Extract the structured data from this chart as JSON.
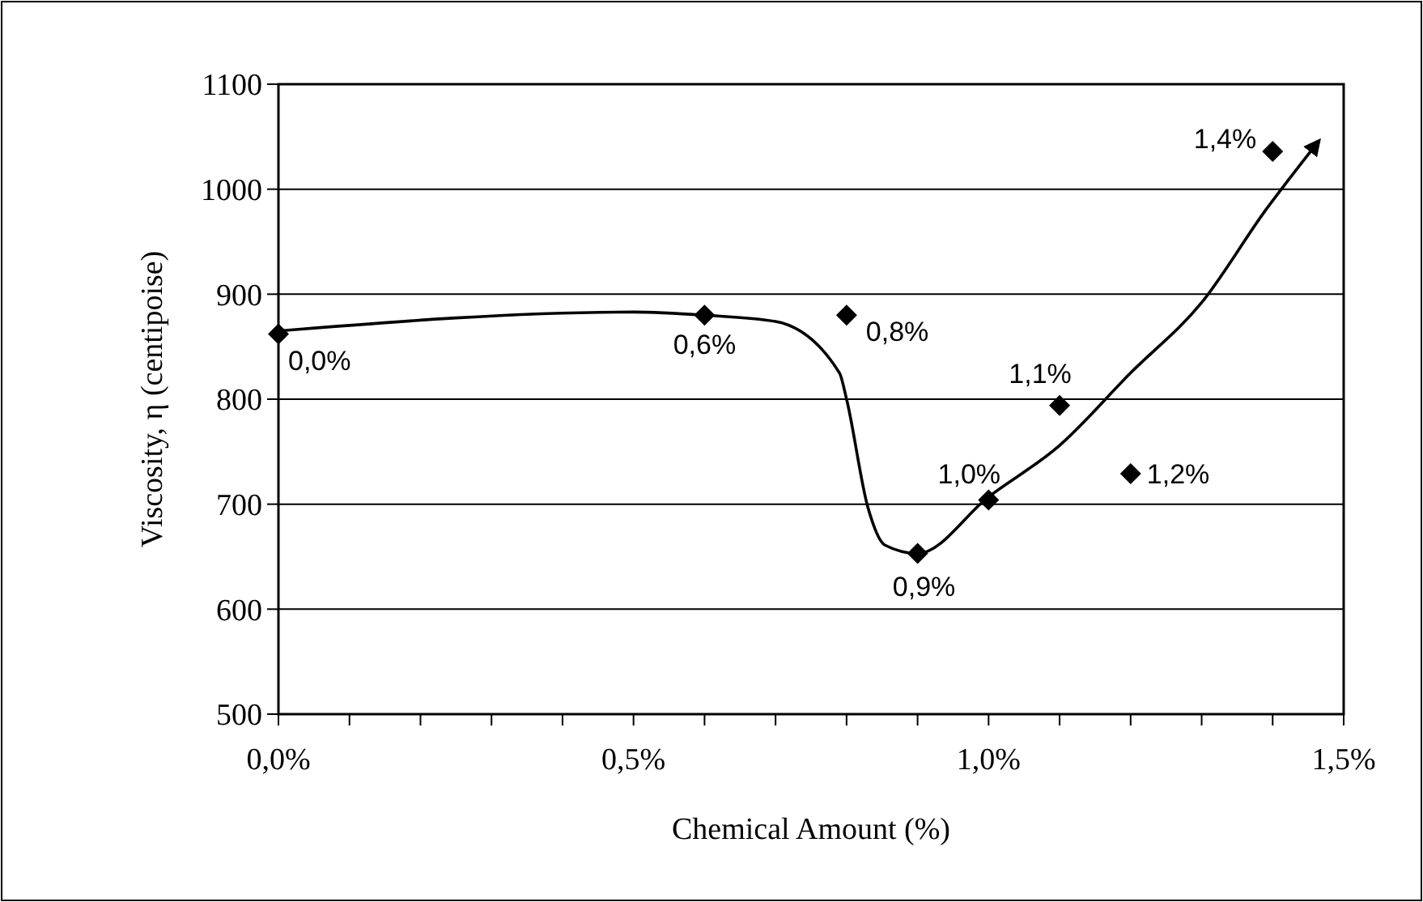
{
  "chart_data": {
    "type": "scatter",
    "xlabel": "Chemical Amount (%)",
    "ylabel": "Viscosity, η (centipoise)",
    "xlim": [
      0,
      1.5
    ],
    "ylim": [
      500,
      1100
    ],
    "xticks": [
      {
        "value": 0,
        "label": "0,0%"
      },
      {
        "value": 0.1,
        "label": null
      },
      {
        "value": 0.2,
        "label": null
      },
      {
        "value": 0.3,
        "label": null
      },
      {
        "value": 0.4,
        "label": null
      },
      {
        "value": 0.5,
        "label": "0,5%"
      },
      {
        "value": 0.6,
        "label": null
      },
      {
        "value": 0.7,
        "label": null
      },
      {
        "value": 0.8,
        "label": null
      },
      {
        "value": 0.9,
        "label": null
      },
      {
        "value": 1,
        "label": "1,0%"
      },
      {
        "value": 1.1,
        "label": null
      },
      {
        "value": 1.2,
        "label": null
      },
      {
        "value": 1.3,
        "label": null
      },
      {
        "value": 1.4,
        "label": null
      },
      {
        "value": 1.5,
        "label": "1,5%"
      }
    ],
    "yticks": [
      500,
      600,
      700,
      800,
      900,
      1000,
      1100
    ],
    "grid": "y",
    "annotations": [
      {
        "text": "0,0%",
        "x": 0,
        "y": 862
      },
      {
        "text": "0,6%",
        "x": 0.6,
        "y": 880
      },
      {
        "text": "0,8%",
        "x": 0.8,
        "y": 880
      },
      {
        "text": "0,9%",
        "x": 0.9,
        "y": 653
      },
      {
        "text": "1,0%",
        "x": 1.0,
        "y": 704
      },
      {
        "text": "1,1%",
        "x": 1.1,
        "y": 794
      },
      {
        "text": "1,2%",
        "x": 1.2,
        "y": 729
      },
      {
        "text": "1,4%",
        "x": 1.4,
        "y": 1036
      }
    ],
    "series": [
      {
        "marker": "diamond",
        "color": "#000000",
        "x": [
          0,
          0.6,
          0.8,
          0.9,
          1.0,
          1.1,
          1.2,
          1.4
        ],
        "values": [
          862,
          880,
          880,
          653,
          704,
          794,
          729,
          1036
        ]
      },
      {
        "type": "line",
        "marker": "none",
        "line_style": "solid",
        "color": "#000000",
        "x": [
          0,
          0.5,
          0.6,
          0.7,
          0.79,
          0.8,
          0.83,
          0.854,
          0.9,
          1.0,
          1.1,
          1.2,
          1.3,
          1.39,
          1.465
        ],
        "values": [
          865,
          883,
          880,
          874,
          825,
          800,
          697,
          661,
          653,
          707,
          756,
          825,
          892,
          980,
          1046
        ]
      }
    ]
  }
}
